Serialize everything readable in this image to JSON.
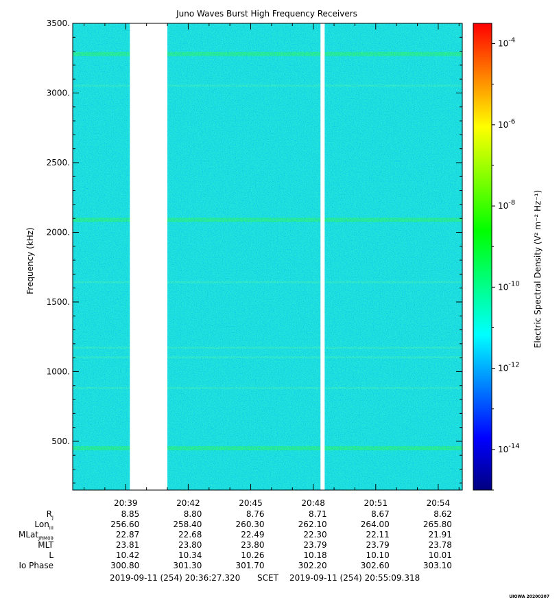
{
  "chart_data": {
    "type": "heatmap",
    "title": "Juno Waves Burst High Frequency Receivers",
    "ylabel": "Frequency (kHz)",
    "ylim": [
      150,
      3500
    ],
    "yticks": [
      "3500.",
      "3000.",
      "2500.",
      "2000.",
      "1500.",
      "1000.",
      "500."
    ],
    "ytick_values": [
      3500,
      3000,
      2500,
      2000,
      1500,
      1000,
      500
    ],
    "xlim_min": [
      36.456,
      55.155
    ],
    "xtick_labels": [
      "20:39",
      "20:42",
      "20:45",
      "20:48",
      "20:51",
      "20:54"
    ],
    "xtick_min": [
      39,
      42,
      45,
      48,
      51,
      54
    ],
    "data_gaps_min": [
      [
        39.2,
        41.0
      ],
      [
        48.35,
        48.55
      ]
    ],
    "emission_lines_khz": [
      450,
      880,
      1100,
      1170,
      1640,
      2090,
      3050,
      3280
    ],
    "colorbar": {
      "label": "Electric Spectral Density (V² m⁻² Hz⁻¹)",
      "log_range": [
        -15,
        -3.5
      ],
      "ticks": [
        "10-4",
        "10-6",
        "10-8",
        "10-10",
        "10-12",
        "10-14"
      ],
      "tick_exponents": [
        -4,
        -6,
        -8,
        -10,
        -12,
        -14
      ],
      "colors": [
        "#000080",
        "#0000ff",
        "#0080ff",
        "#00ffff",
        "#00ff80",
        "#00ff00",
        "#80ff00",
        "#ffff00",
        "#ff8000",
        "#ff0000"
      ]
    },
    "background_color": "#22e3db"
  },
  "ephemeris": {
    "rows": [
      {
        "name": "R",
        "sub": "J",
        "values": [
          "8.85",
          "8.80",
          "8.76",
          "8.71",
          "8.67",
          "8.62"
        ]
      },
      {
        "name": "Lon",
        "sub": "III",
        "values": [
          "256.60",
          "258.40",
          "260.30",
          "262.10",
          "264.00",
          "265.80"
        ]
      },
      {
        "name": "MLat",
        "sub": "JRM09",
        "values": [
          "22.87",
          "22.68",
          "22.49",
          "22.30",
          "22.11",
          "21.91"
        ]
      },
      {
        "name": "MLT",
        "sub": "",
        "values": [
          "23.81",
          "23.80",
          "23.80",
          "23.79",
          "23.79",
          "23.78"
        ]
      },
      {
        "name": "L",
        "sub": "",
        "values": [
          "10.42",
          "10.34",
          "10.26",
          "10.18",
          "10.10",
          "10.01"
        ]
      },
      {
        "name": "Io Phase",
        "sub": "",
        "values": [
          "300.80",
          "301.30",
          "301.70",
          "302.20",
          "302.60",
          "303.10"
        ]
      }
    ]
  },
  "scet": {
    "start": "2019-09-11 (254) 20:36:27.320",
    "label": "SCET",
    "end": "2019-09-11 (254) 20:55:09.318"
  },
  "footer": "UIOWA 20200307"
}
